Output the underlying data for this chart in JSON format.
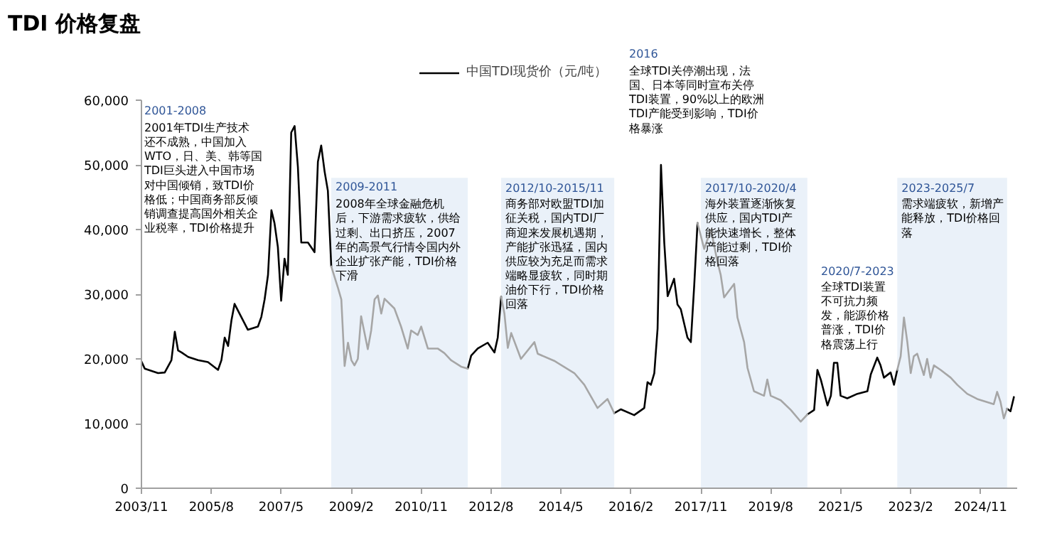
{
  "chart_data": {
    "type": "line",
    "title": "TDI 价格复盘",
    "xlim": [
      "2003-11",
      "2025-10"
    ],
    "xticks": [
      {
        "value": "2003-11",
        "label": "2003/11"
      },
      {
        "value": "2005-08",
        "label": "2005/8"
      },
      {
        "value": "2007-05",
        "label": "2007/5"
      },
      {
        "value": "2009-02",
        "label": "2009/2"
      },
      {
        "value": "2010-11",
        "label": "2010/11"
      },
      {
        "value": "2012-08",
        "label": "2012/8"
      },
      {
        "value": "2014-05",
        "label": "2014/5"
      },
      {
        "value": "2016-02",
        "label": "2016/2"
      },
      {
        "value": "2017-11",
        "label": "2017/11"
      },
      {
        "value": "2019-08",
        "label": "2019/8"
      },
      {
        "value": "2021-05",
        "label": "2021/5"
      },
      {
        "value": "2023-02",
        "label": "2023/2"
      },
      {
        "value": "2024-11",
        "label": "2024/11"
      }
    ],
    "ylim": [
      0,
      60000
    ],
    "yticks": [
      0,
      {
        "value": 10000,
        "label": "10,000"
      },
      {
        "value": 20000,
        "label": "20,000"
      },
      {
        "value": 30000,
        "label": "30,000"
      },
      {
        "value": 40000,
        "label": "40,000"
      },
      {
        "value": 50000,
        "label": "50,000"
      },
      {
        "value": 60000,
        "label": "60,000"
      }
    ],
    "legend": "top",
    "series": [
      {
        "name": "中国TDI现货价（元/吨）",
        "color": "#000000",
        "x": [
          "2003-11",
          "2003-12",
          "2004-04",
          "2004-06",
          "2004-08",
          "2004-09",
          "2004-10",
          "2004-11",
          "2005-01",
          "2005-04",
          "2005-07",
          "2005-10",
          "2005-11",
          "2005-12",
          "2006-01",
          "2006-02",
          "2006-03",
          "2006-05",
          "2006-07",
          "2006-10",
          "2006-11",
          "2006-12",
          "2007-01",
          "2007-02",
          "2007-03",
          "2007-04",
          "2007-05",
          "2007-06",
          "2007-07",
          "2007-08",
          "2007-09",
          "2007-10",
          "2007-11",
          "2008-01",
          "2008-03",
          "2008-04",
          "2008-05",
          "2008-06",
          "2008-07",
          "2008-08",
          "2010-01",
          "2012-01",
          "2012-02",
          "2012-04",
          "2012-07",
          "2012-09",
          "2012-10",
          "2012-11",
          "2014-01",
          "2015-09",
          "2015-11",
          "2016-03",
          "2016-06",
          "2016-07",
          "2016-08",
          "2016-09",
          "2016-10",
          "2016-11",
          "2016-12",
          "2017-01",
          "2017-03",
          "2017-04",
          "2017-05",
          "2017-07",
          "2017-08",
          "2017-09",
          "2017-10",
          "2019-01",
          "2020-07",
          "2020-09",
          "2020-10",
          "2020-11",
          "2021-01",
          "2021-02",
          "2021-03",
          "2021-04",
          "2021-05",
          "2021-07",
          "2021-10",
          "2022-01",
          "2022-02",
          "2022-04",
          "2022-05",
          "2022-06",
          "2022-08",
          "2022-09",
          "2022-10",
          "2024-01",
          "2025-07",
          "2025-08",
          "2025-09"
        ],
        "values": [
          19600,
          18500,
          17800,
          17900,
          19800,
          24200,
          21300,
          21000,
          20300,
          19800,
          19500,
          18300,
          19800,
          23300,
          22000,
          26000,
          28500,
          26500,
          24500,
          25000,
          26500,
          29200,
          33000,
          43000,
          41000,
          37300,
          29000,
          35500,
          33000,
          55000,
          56000,
          49700,
          38000,
          38000,
          36500,
          50500,
          53000,
          49000,
          46000,
          34300,
          null,
          18500,
          20500,
          21600,
          22500,
          21000,
          23300,
          29600,
          null,
          11600,
          12200,
          11300,
          12400,
          16400,
          16000,
          17800,
          24700,
          50000,
          38000,
          29700,
          32400,
          28400,
          27700,
          23300,
          22600,
          31400,
          41000,
          null,
          11400,
          12100,
          18300,
          16800,
          12800,
          14300,
          19400,
          19400,
          14300,
          13900,
          14600,
          15000,
          17600,
          20200,
          19000,
          17100,
          17900,
          16000,
          18300,
          null,
          12300,
          11900,
          14100
        ]
      },
      {
        "color": "#a6a6a6",
        "x": [
          "2008-08",
          "2008-10",
          "2008-11",
          "2008-12",
          "2009-01",
          "2009-02",
          "2009-03",
          "2009-04",
          "2009-05",
          "2009-06",
          "2009-07",
          "2009-08",
          "2009-09",
          "2009-10",
          "2009-11",
          "2009-12",
          "2010-03",
          "2010-05",
          "2010-07",
          "2010-08",
          "2010-10",
          "2010-11",
          "2011-01",
          "2011-04",
          "2011-06",
          "2011-08",
          "2011-11",
          "2012-01",
          "2012-06",
          "2012-11",
          "2012-12",
          "2013-01",
          "2013-02",
          "2013-05",
          "2013-09",
          "2013-10",
          "2014-03",
          "2014-09",
          "2014-12",
          "2015-04",
          "2015-07",
          "2015-09",
          "2016-06",
          "2017-10",
          "2017-12",
          "2018-02",
          "2018-04",
          "2018-05",
          "2018-06",
          "2018-07",
          "2018-09",
          "2018-10",
          "2018-12",
          "2019-01",
          "2019-03",
          "2019-06",
          "2019-07",
          "2019-08",
          "2019-11",
          "2020-02",
          "2020-05",
          "2020-07",
          "2021-06",
          "2022-10",
          "2022-11",
          "2022-12",
          "2023-01",
          "2023-02",
          "2023-03",
          "2023-04",
          "2023-06",
          "2023-07",
          "2023-08",
          "2023-09",
          "2023-11",
          "2024-02",
          "2024-04",
          "2024-07",
          "2024-10",
          "2025-03",
          "2025-04",
          "2025-05",
          "2025-06",
          "2025-07"
        ],
        "values": [
          34300,
          31000,
          29200,
          18900,
          22500,
          19800,
          19000,
          20000,
          26600,
          24000,
          21500,
          24400,
          29200,
          29800,
          27000,
          29300,
          27800,
          25000,
          21600,
          24400,
          23700,
          25000,
          21600,
          21600,
          20900,
          19800,
          18800,
          18500,
          null,
          29600,
          27000,
          21700,
          24000,
          20000,
          22600,
          20800,
          19700,
          17800,
          16000,
          12400,
          13800,
          11600,
          null,
          41000,
          37000,
          40000,
          35000,
          33000,
          29500,
          30200,
          31600,
          26400,
          22600,
          18600,
          15000,
          14300,
          16800,
          14300,
          13600,
          12100,
          10300,
          11400,
          null,
          18300,
          20400,
          26400,
          22600,
          17800,
          20400,
          20800,
          17500,
          20000,
          17100,
          19000,
          18300,
          17100,
          16000,
          14600,
          13800,
          13000,
          14900,
          13400,
          10800,
          12300
        ]
      }
    ],
    "bands": [
      {
        "axis": "x",
        "from": "2008-08",
        "to": "2012-01",
        "color": "#eaf1f9",
        "label": "2009-2011\n2008年全球金融危机后，下游需求疲软，供给过剩、出口挤压，2007年的高景气行情令国内外企业扩张产能，TDI价格下滑"
      },
      {
        "axis": "x",
        "from": "2012-11",
        "to": "2015-09",
        "color": "#eaf1f9",
        "label": "2012/10-2015/11\n商务部对欧盟TDI加征关税，国内TDI厂商迎来发展机遇期，产能扩张迅猛，国内供应较为充足而需求端略显疲软，同时期油价下行，TDI价格回落"
      },
      {
        "axis": "x",
        "from": "2017-11",
        "to": "2020-07",
        "color": "#eaf1f9",
        "label": "2017/10-2020/4\n海外装置逐渐恢复供应，国内TDI产能快速增长，整体产能过剩，TDI价格回落"
      },
      {
        "axis": "x",
        "from": "2022-10",
        "to": "2025-07",
        "color": "#eaf1f9",
        "label": "2023-2025/7\n需求端疲软，新增产能释放，TDI价格回落"
      }
    ],
    "annotations": [
      "2001-2008\n2001年TDI生产技术还不成熟，中国加入WTO，日、美、韩等国TDI巨头进入中国市场对中国倾销，致TDI价格低；中国商务部反倾销调查提高国外相关企业税率，TDI价格提升",
      "2016\n全球TDI关停潮出现，法国、日本等同时宣布关停TDI装置，90%以上的欧洲TDI产能受到影响，TDI价格暴涨",
      "2020/7-2023\n全球TDI装置不可抗力频发，能源价格普涨，TDI价格震荡上行"
    ]
  }
}
